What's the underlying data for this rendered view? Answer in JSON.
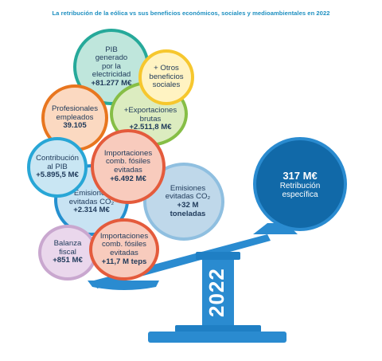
{
  "title": "La retribución de la eólica vs sus beneficios económicos, sociales y medioambientales en 2022",
  "year": "2022",
  "retribucion": {
    "value": "317 M€",
    "label": "Retribución específica"
  },
  "bubbles": {
    "pib": {
      "label": "PIB generado por la electricidad",
      "value": "+81.277 M€",
      "color": "#bfe6dc",
      "border": "#26a99a"
    },
    "otros": {
      "label": "+ Otros beneficios sociales",
      "value": "",
      "color": "#fff3c2",
      "border": "#f6c72e"
    },
    "profesionales": {
      "label": "Profesionales empleados",
      "value": "39.105",
      "color": "#fbd9c1",
      "border": "#e8761f"
    },
    "exportaciones": {
      "label": "+Exportaciones brutas",
      "value": "+2.511,8 M€",
      "color": "#dcecc0",
      "border": "#86be46"
    },
    "contribucion": {
      "label": "Contribución al PIB",
      "value": "+5.895,5 M€",
      "color": "#c9e6f3",
      "border": "#28a6d6"
    },
    "importaciones1": {
      "label": "Importaciones comb. fósiles evitadas",
      "value": "+6.492 M€",
      "color": "#f8cbbd",
      "border": "#e45b3c"
    },
    "emisiones1": {
      "label": "Emisiones evitadas CO₂",
      "value": "+2.314 M€",
      "color": "#c8e3f3",
      "border": "#2590cf"
    },
    "emisiones2": {
      "label": "Emisiones evitadas CO₂",
      "value": "+32 M toneladas",
      "color": "#bfd8ea",
      "border": "#8fbfe0"
    },
    "balanza": {
      "label": "Balanza fiscal",
      "value": "+851 M€",
      "color": "#ead7ec",
      "border": "#c9a7cf"
    },
    "importaciones2": {
      "label": "Importaciones comb. fósiles evitadas",
      "value": "+11,7 M teps",
      "color": "#f8cbbd",
      "border": "#e45b3c"
    }
  }
}
